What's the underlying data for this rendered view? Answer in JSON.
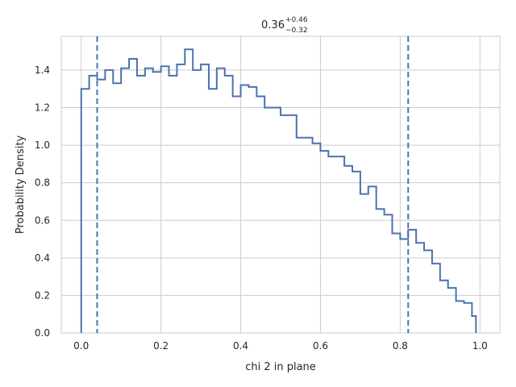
{
  "chart_data": {
    "type": "histogram-step",
    "title": {
      "value": "0.36",
      "upper": "+0.46",
      "lower": "−0.32"
    },
    "xlabel": "chi 2 in plane",
    "ylabel": "Probability Density",
    "xlim": [
      -0.05,
      1.05
    ],
    "ylim": [
      0.0,
      1.58
    ],
    "xticks": [
      0.0,
      0.2,
      0.4,
      0.6,
      0.8,
      1.0
    ],
    "xtick_labels": [
      "0.0",
      "0.2",
      "0.4",
      "0.6",
      "0.8",
      "1.0"
    ],
    "yticks": [
      0.0,
      0.2,
      0.4,
      0.6,
      0.8,
      1.0,
      1.2,
      1.4
    ],
    "ytick_labels": [
      "0.0",
      "0.2",
      "0.4",
      "0.6",
      "0.8",
      "1.0",
      "1.2",
      "1.4"
    ],
    "grid": true,
    "line_color": "#4c72b0",
    "bin_edges": [
      0.0,
      0.02,
      0.04,
      0.06,
      0.08,
      0.1,
      0.12,
      0.14,
      0.16,
      0.18,
      0.2,
      0.22,
      0.24,
      0.26,
      0.28,
      0.3,
      0.32,
      0.34,
      0.36,
      0.38,
      0.4,
      0.42,
      0.44,
      0.46,
      0.48,
      0.5,
      0.52,
      0.54,
      0.56,
      0.58,
      0.6,
      0.62,
      0.64,
      0.66,
      0.68,
      0.7,
      0.72,
      0.74,
      0.76,
      0.78,
      0.8,
      0.82,
      0.84,
      0.86,
      0.88,
      0.9,
      0.92,
      0.94,
      0.96,
      0.98,
      0.99
    ],
    "density": [
      1.3,
      1.37,
      1.35,
      1.4,
      1.33,
      1.41,
      1.46,
      1.37,
      1.41,
      1.39,
      1.42,
      1.37,
      1.43,
      1.51,
      1.4,
      1.43,
      1.3,
      1.41,
      1.37,
      1.26,
      1.32,
      1.31,
      1.26,
      1.2,
      1.2,
      1.16,
      1.16,
      1.04,
      1.04,
      1.01,
      0.97,
      0.94,
      0.94,
      0.89,
      0.86,
      0.74,
      0.78,
      0.66,
      0.63,
      0.53,
      0.5,
      0.55,
      0.48,
      0.44,
      0.37,
      0.28,
      0.24,
      0.17,
      0.16,
      0.09
    ],
    "quantile_lines": [
      0.04,
      0.82
    ]
  }
}
